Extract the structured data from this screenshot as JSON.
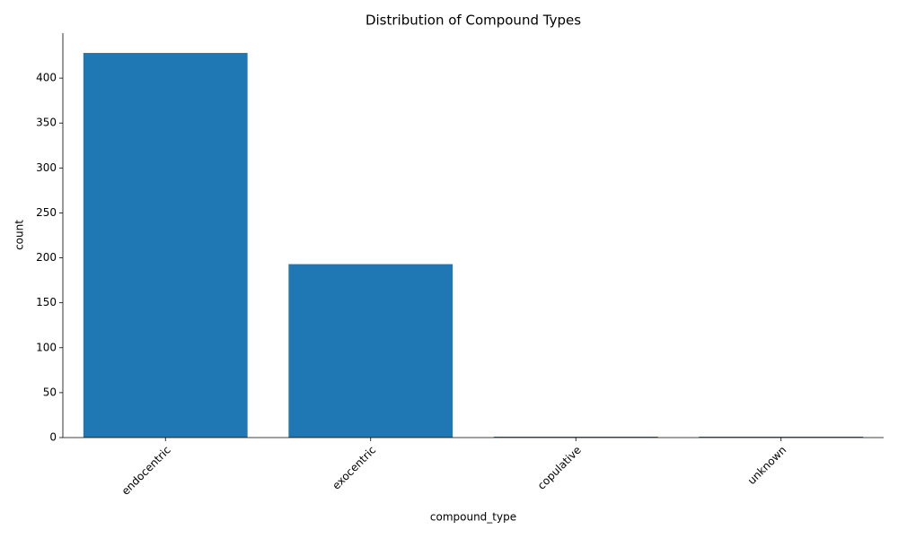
{
  "chart_data": {
    "type": "bar",
    "title": "Distribution of Compound Types",
    "x_label": "compound_type",
    "y_label": "count",
    "categories": [
      "endocentric",
      "exocentric",
      "copulative",
      "unknown"
    ],
    "values": [
      428,
      193,
      1,
      1
    ],
    "color": "#1f77b4",
    "ylim": [
      0,
      450
    ],
    "yticks": [
      0,
      50,
      100,
      150,
      200,
      250,
      300,
      350,
      400
    ],
    "grid": false
  }
}
